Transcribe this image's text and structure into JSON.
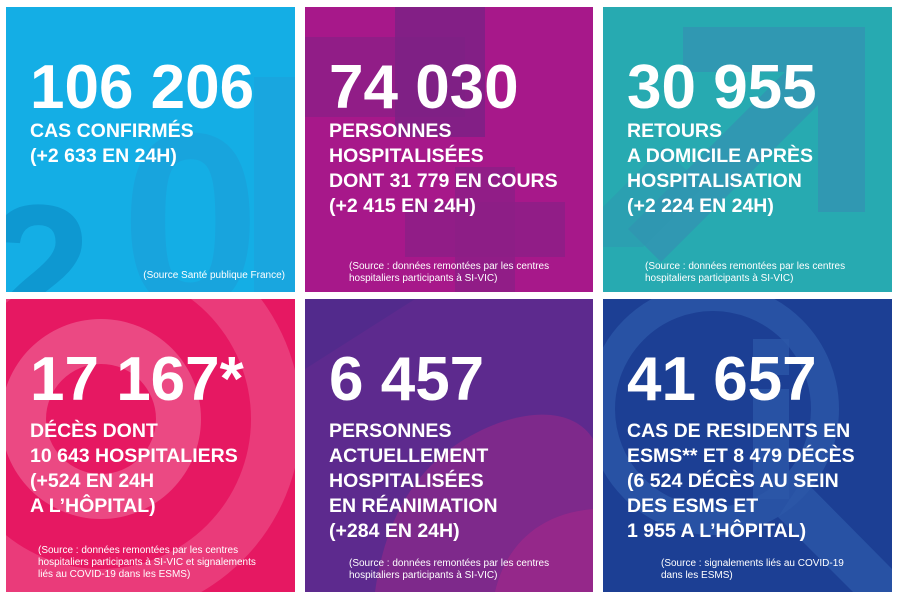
{
  "tiles": [
    {
      "number": "106 206",
      "lines": [
        "CAS CONFIRMÉS",
        "(+2 633 EN 24H)"
      ],
      "source": [
        "(Source Santé publique France)"
      ],
      "color": "#14aee5"
    },
    {
      "number": "74 030",
      "lines": [
        "PERSONNES",
        "HOSPITALISÉES",
        "DONT 31 779 EN COURS",
        "(+2 415 EN 24H)"
      ],
      "source": [
        "(Source : données remontées par les centres",
        "hospitaliers participants à SI-VIC)"
      ],
      "color": "#a7188a"
    },
    {
      "number": "30 955",
      "lines": [
        "RETOURS",
        "A DOMICILE APRÈS",
        "HOSPITALISATION",
        "(+2 224 EN 24H)"
      ],
      "source": [
        "(Source : données remontées par les centres",
        "hospitaliers participants à SI-VIC)"
      ],
      "color": "#27aab1"
    },
    {
      "number": "17 167*",
      "lines": [
        "DÉCÈS DONT",
        "10 643 HOSPITALIERS",
        "(+524 EN 24H",
        "A L’HÔPITAL)"
      ],
      "source": [
        "(Source : données remontées par les centres",
        "hospitaliers participants à SI-VIC et signalements",
        "liés au COVID-19 dans les ESMS)"
      ],
      "color": "#e61862"
    },
    {
      "number": "6 457",
      "lines": [
        "PERSONNES",
        "ACTUELLEMENT",
        "HOSPITALISÉES",
        "EN RÉANIMATION",
        "(+284 EN 24H)"
      ],
      "source": [
        "(Source : données remontées par les centres",
        "hospitaliers participants à SI-VIC)"
      ],
      "color": "#5d2a8e"
    },
    {
      "number": "41 657",
      "lines": [
        "CAS DE RESIDENTS EN",
        "ESMS** ET 8 479 DÉCÈS",
        "(6 524 DÉCÈS AU SEIN",
        "DES ESMS ET",
        "1 955 A L’HÔPITAL)"
      ],
      "source": [
        "(Source : signalements liés au COVID-19",
        "dans les ESMS)"
      ],
      "color": "#1c3f94"
    }
  ]
}
